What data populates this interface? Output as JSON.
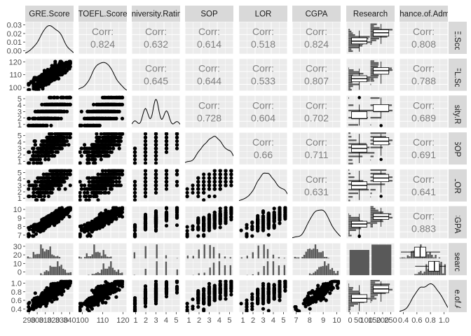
{
  "chart_data": {
    "type": "scatter",
    "title": "",
    "variables": [
      "GRE.Score",
      "TOEFL.Score",
      "University.Rating",
      "SOP",
      "LOR",
      "CGPA",
      "Research",
      "Chance.of.Admit"
    ],
    "column_strip_labels": [
      "GRE.Score",
      "TOEFL.Score",
      "University.Rating",
      "SOP",
      "LOR",
      "CGPA",
      "Research",
      "Chance.of.Admit"
    ],
    "row_strip_labels": [
      "GRE.Score",
      "TOEFL.Score",
      "University.Rating",
      "SOP",
      "LOR",
      "CGPA",
      "Research",
      "Chance.of.Admit"
    ],
    "corr_label": "Corr:",
    "correlations": [
      {
        "row": 0,
        "col": 1,
        "value": "0.824"
      },
      {
        "row": 0,
        "col": 2,
        "value": "0.632"
      },
      {
        "row": 0,
        "col": 3,
        "value": "0.614"
      },
      {
        "row": 0,
        "col": 4,
        "value": "0.518"
      },
      {
        "row": 0,
        "col": 5,
        "value": "0.824"
      },
      {
        "row": 0,
        "col": 7,
        "value": "0.808"
      },
      {
        "row": 1,
        "col": 2,
        "value": "0.645"
      },
      {
        "row": 1,
        "col": 3,
        "value": "0.644"
      },
      {
        "row": 1,
        "col": 4,
        "value": "0.533"
      },
      {
        "row": 1,
        "col": 5,
        "value": "0.807"
      },
      {
        "row": 1,
        "col": 7,
        "value": "0.788"
      },
      {
        "row": 2,
        "col": 3,
        "value": "0.728"
      },
      {
        "row": 2,
        "col": 4,
        "value": "0.604"
      },
      {
        "row": 2,
        "col": 5,
        "value": "0.702"
      },
      {
        "row": 2,
        "col": 7,
        "value": "0.689"
      },
      {
        "row": 3,
        "col": 4,
        "value": "0.66"
      },
      {
        "row": 3,
        "col": 5,
        "value": "0.711"
      },
      {
        "row": 3,
        "col": 7,
        "value": "0.691"
      },
      {
        "row": 4,
        "col": 5,
        "value": "0.631"
      },
      {
        "row": 4,
        "col": 7,
        "value": "0.641"
      },
      {
        "row": 5,
        "col": 7,
        "value": "0.883"
      }
    ],
    "x_tick_labels": [
      [
        "290",
        "300",
        "310",
        "320",
        "330",
        "340"
      ],
      [
        "100",
        "110",
        "120"
      ],
      [
        "1",
        "2",
        "3",
        "4",
        "5"
      ],
      [
        "1",
        "2",
        "3",
        "4",
        "5"
      ],
      [
        "1",
        "2",
        "3",
        "4",
        "5"
      ],
      [
        "7",
        "8",
        "9",
        "10"
      ],
      [
        "0",
        "50",
        "100",
        "150",
        "200",
        "250"
      ],
      [
        "0.4",
        "0.6",
        "0.8",
        "1.0"
      ]
    ],
    "y_tick_labels": [
      [
        "0.00",
        "0.01",
        "0.02",
        "0.03"
      ],
      [
        "100",
        "110",
        "120"
      ],
      [
        "1",
        "2",
        "3",
        "4",
        "5"
      ],
      [
        "1",
        "2",
        "3",
        "4",
        "5"
      ],
      [
        "1",
        "2",
        "3",
        "4",
        "5"
      ],
      [
        "7",
        "8",
        "9",
        "10"
      ],
      [
        "0",
        "10",
        "20",
        "30"
      ],
      [
        "0.4",
        "0.6",
        "0.8",
        "1.0"
      ]
    ],
    "ranges": [
      [
        286,
        344
      ],
      [
        91,
        123
      ],
      [
        0.7,
        5.3
      ],
      [
        0.8,
        5.2
      ],
      [
        0.8,
        5.2
      ],
      [
        6.6,
        10.1
      ],
      [
        -0.6,
        1.6
      ],
      [
        0.32,
        1.0
      ]
    ],
    "density_range": [
      0,
      0.036
    ],
    "count_range": [
      0,
      33
    ],
    "research_counts": {
      "0": 181,
      "1": 219
    },
    "background": "#ebebeb",
    "strip_fill": "#d9d9d9",
    "grid_color": "#ffffff",
    "ink": "#000000",
    "bar_fill": "#595959",
    "grid": true
  }
}
